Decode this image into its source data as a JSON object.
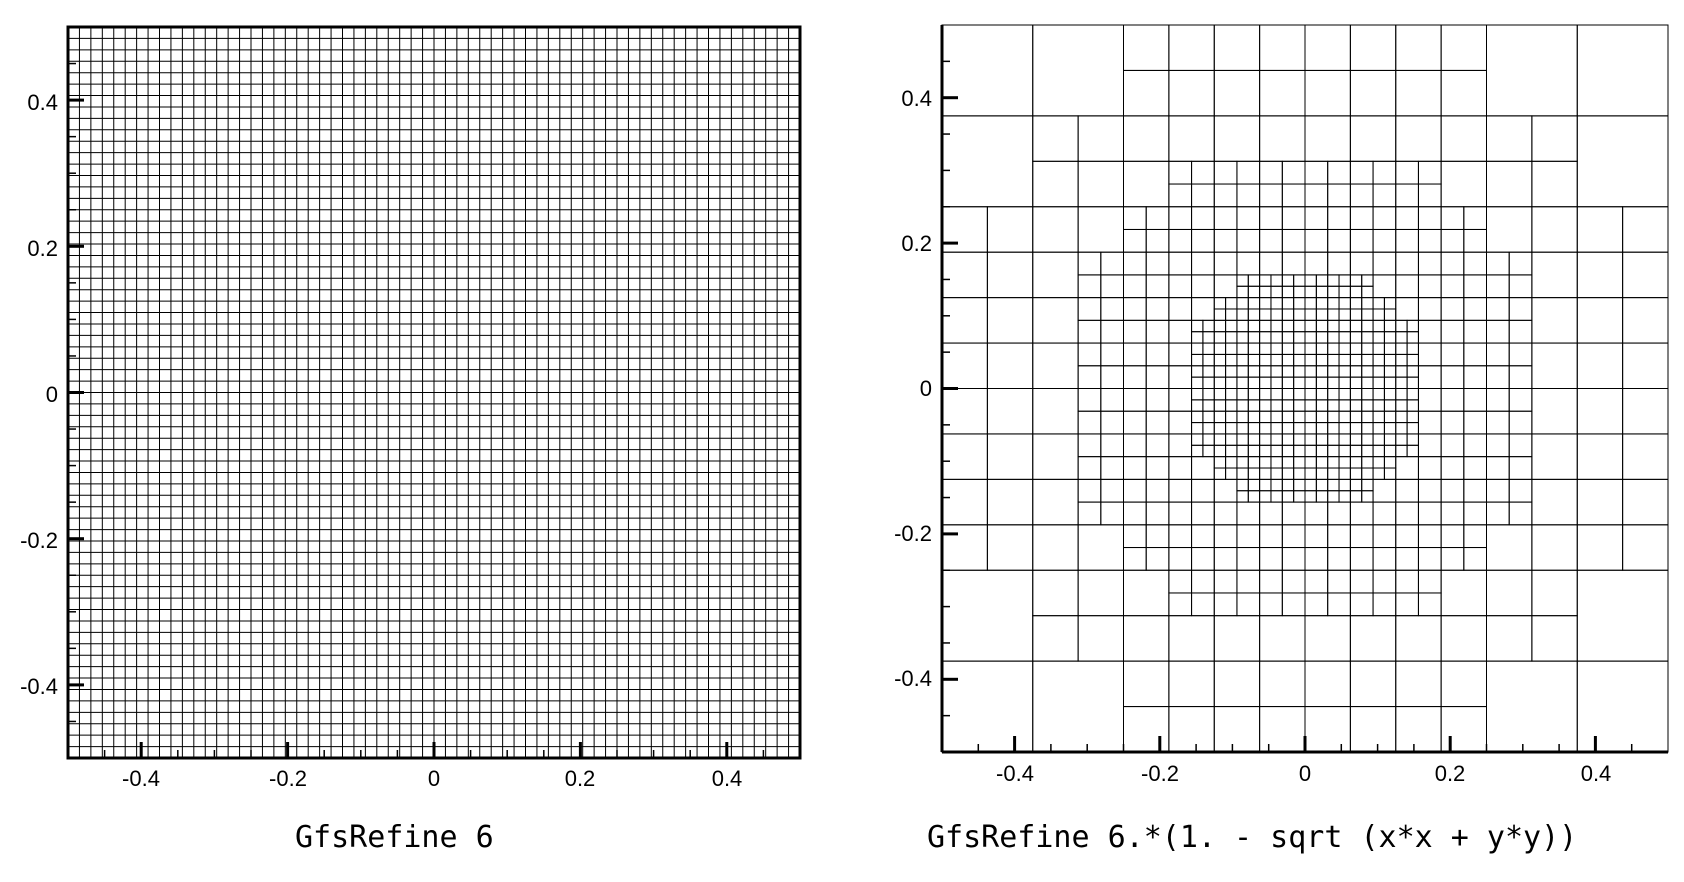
{
  "panels": [
    {
      "id": "uniform",
      "caption": "GfsRefine 6",
      "x_ticks": [
        "-0.4",
        "-0.2",
        "0",
        "0.2",
        "0.4"
      ],
      "y_ticks": [
        "0.4",
        "0.2",
        "0",
        "-0.2",
        "-0.4"
      ],
      "domain": [
        -0.5,
        0.5
      ],
      "refinement_level": 6
    },
    {
      "id": "adaptive",
      "caption": "GfsRefine 6.*(1. - sqrt (x*x + y*y))",
      "x_ticks": [
        "-0.4",
        "-0.2",
        "0",
        "0.2",
        "0.4"
      ],
      "y_ticks": [
        "0.4",
        "0.2",
        "0",
        "-0.2",
        "-0.4"
      ],
      "domain": [
        -0.5,
        0.5
      ],
      "refinement_expression": "6.*(1. - sqrt (x*x + y*y))"
    }
  ],
  "colors": {
    "line": "#000000",
    "background": "#ffffff"
  }
}
